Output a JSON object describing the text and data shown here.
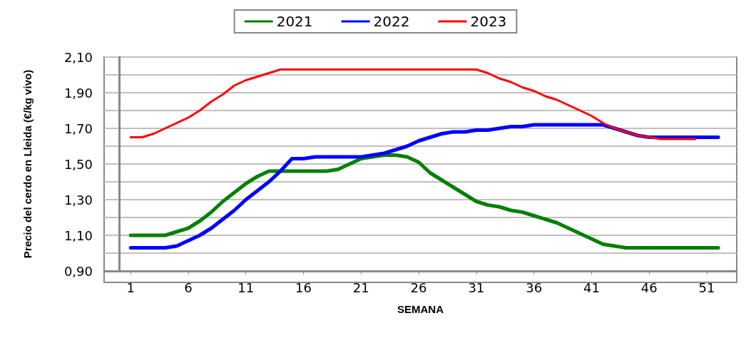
{
  "chart_data": {
    "type": "line",
    "xlabel": "SEMANA",
    "ylabel": "Precio del cerdo en Lleida (€/kg vivo)",
    "x": [
      1,
      2,
      3,
      4,
      5,
      6,
      7,
      8,
      9,
      10,
      11,
      12,
      13,
      14,
      15,
      16,
      17,
      18,
      19,
      20,
      21,
      22,
      23,
      24,
      25,
      26,
      27,
      28,
      29,
      30,
      31,
      32,
      33,
      34,
      35,
      36,
      37,
      38,
      39,
      40,
      41,
      42,
      43,
      44,
      45,
      46,
      47,
      48,
      49,
      50,
      51,
      52
    ],
    "series": [
      {
        "name": "2021",
        "color": "#008000",
        "values": [
          1.1,
          1.1,
          1.1,
          1.1,
          1.12,
          1.14,
          1.18,
          1.23,
          1.29,
          1.34,
          1.39,
          1.43,
          1.46,
          1.46,
          1.46,
          1.46,
          1.46,
          1.46,
          1.47,
          1.5,
          1.53,
          1.54,
          1.55,
          1.55,
          1.54,
          1.51,
          1.45,
          1.41,
          1.37,
          1.33,
          1.29,
          1.27,
          1.26,
          1.24,
          1.23,
          1.21,
          1.19,
          1.17,
          1.14,
          1.11,
          1.08,
          1.05,
          1.04,
          1.03,
          1.03,
          1.03,
          1.03,
          1.03,
          1.03,
          1.03,
          1.03,
          1.03
        ]
      },
      {
        "name": "2022",
        "color": "#0000ff",
        "values": [
          1.03,
          1.03,
          1.03,
          1.03,
          1.04,
          1.07,
          1.1,
          1.14,
          1.19,
          1.24,
          1.3,
          1.35,
          1.4,
          1.46,
          1.53,
          1.53,
          1.54,
          1.54,
          1.54,
          1.54,
          1.54,
          1.55,
          1.56,
          1.58,
          1.6,
          1.63,
          1.65,
          1.67,
          1.68,
          1.68,
          1.69,
          1.69,
          1.7,
          1.71,
          1.71,
          1.72,
          1.72,
          1.72,
          1.72,
          1.72,
          1.72,
          1.72,
          1.7,
          1.68,
          1.66,
          1.65,
          1.65,
          1.65,
          1.65,
          1.65,
          1.65,
          1.65
        ]
      },
      {
        "name": "2023",
        "color": "#ff0000",
        "values": [
          1.65,
          1.65,
          1.67,
          1.7,
          1.73,
          1.76,
          1.8,
          1.85,
          1.89,
          1.94,
          1.97,
          1.99,
          2.01,
          2.03,
          2.03,
          2.03,
          2.03,
          2.03,
          2.03,
          2.03,
          2.03,
          2.03,
          2.03,
          2.03,
          2.03,
          2.03,
          2.03,
          2.03,
          2.03,
          2.03,
          2.03,
          2.01,
          1.98,
          1.96,
          1.93,
          1.91,
          1.88,
          1.86,
          1.83,
          1.8,
          1.77,
          1.73,
          1.7,
          1.68,
          1.66,
          1.65,
          1.64,
          1.64,
          1.64,
          1.64,
          null,
          null
        ]
      }
    ],
    "xlim": [
      -1.3,
      53.6
    ],
    "xticks": [
      1,
      6,
      11,
      16,
      21,
      26,
      31,
      36,
      41,
      46,
      51
    ],
    "ylim": [
      0.9,
      2.1
    ],
    "yticks": [
      {
        "value": 0.9,
        "label": "0,90"
      },
      {
        "value": 1.0,
        "label": null
      },
      {
        "value": 1.1,
        "label": "1,10"
      },
      {
        "value": 1.2,
        "label": null
      },
      {
        "value": 1.3,
        "label": "1,30"
      },
      {
        "value": 1.4,
        "label": null
      },
      {
        "value": 1.5,
        "label": "1,50"
      },
      {
        "value": 1.6,
        "label": null
      },
      {
        "value": 1.7,
        "label": "1,70"
      },
      {
        "value": 1.8,
        "label": null
      },
      {
        "value": 1.9,
        "label": "1,90"
      },
      {
        "value": 2.0,
        "label": null
      },
      {
        "value": 2.1,
        "label": "2,10"
      }
    ],
    "grid": "y",
    "legend": "top",
    "marker": "none",
    "line_style": "solid"
  }
}
